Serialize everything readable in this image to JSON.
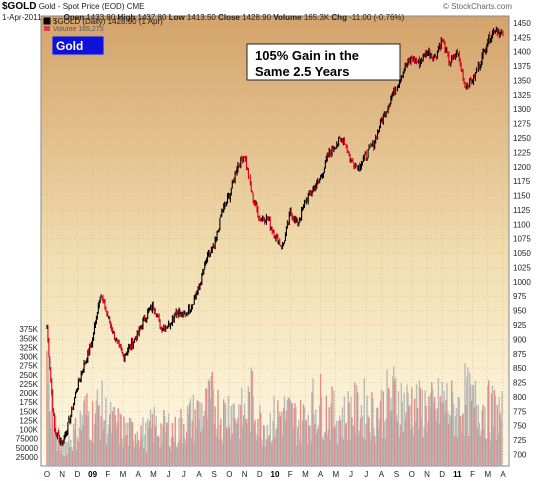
{
  "header": {
    "symbol": "$GOLD",
    "description": "Gold - Spot Price (EOD)",
    "exchange": "CME",
    "source": "© StockCharts.com",
    "date": "1-Apr-2011",
    "open_label": "Open",
    "open": "1433.80",
    "high_label": "High",
    "high": "1437.80",
    "low_label": "Low",
    "low": "1413.50",
    "close_label": "Close",
    "close": "1428.90",
    "volume_label": "Volume",
    "volume": "165.3K",
    "chg_label": "Chg",
    "chg": "-11.00 (-0.76%)"
  },
  "legend": {
    "price_line": "$GOLD (Daily) 1428.90 (1 Apr)",
    "volume_line": "Volume 165,275"
  },
  "labels": {
    "gold_box": "Gold",
    "annotation_line1": "105% Gain in the",
    "annotation_line2": "Same 2.5 Years"
  },
  "colors": {
    "background_top": "#d4a26a",
    "background_bottom": "#fffbe8",
    "up_bar": "#000000",
    "down_bar": "#d8001c",
    "volume_up": "#b0b0b0",
    "volume_down": "#e27b7b",
    "gold_box_bg": "#1010d8",
    "gold_box_text": "#ffffff"
  },
  "chart_data": {
    "type": "line",
    "title": "$GOLD Gold - Spot Price (EOD)",
    "x_tick_labels": [
      "O",
      "N",
      "D",
      "09",
      "F",
      "M",
      "A",
      "M",
      "J",
      "J",
      "A",
      "S",
      "O",
      "N",
      "D",
      "10",
      "F",
      "M",
      "A",
      "M",
      "J",
      "J",
      "A",
      "S",
      "O",
      "N",
      "D",
      "11",
      "F",
      "M",
      "A"
    ],
    "bold_x_ticks": [
      "09",
      "10",
      "11"
    ],
    "y_ticks": [
      700,
      725,
      750,
      775,
      800,
      825,
      850,
      875,
      900,
      925,
      950,
      975,
      1000,
      1025,
      1050,
      1075,
      1100,
      1125,
      1150,
      1175,
      1200,
      1225,
      1250,
      1275,
      1300,
      1325,
      1350,
      1375,
      1400,
      1425,
      1450
    ],
    "ylim": [
      680,
      1462
    ],
    "volume_ticks": [
      "25000",
      "50000",
      "75000",
      "100K",
      "125K",
      "150K",
      "175K",
      "200K",
      "225K",
      "250K",
      "275K",
      "300K",
      "325K",
      "350K",
      "375K"
    ],
    "volume_ylim": [
      0,
      400000
    ],
    "series": [
      {
        "name": "$GOLD (Daily)",
        "month_index": [
          0,
          0.5,
          1,
          1.5,
          2,
          2.5,
          3,
          3.5,
          4,
          4.5,
          5,
          5.5,
          6,
          6.5,
          7,
          7.5,
          8,
          8.5,
          9,
          9.5,
          10,
          10.5,
          11,
          11.5,
          12,
          12.5,
          13,
          13.5,
          14,
          14.5,
          15,
          15.5,
          16,
          16.5,
          17,
          17.5,
          18,
          18.5,
          19,
          19.5,
          20,
          20.5,
          21,
          21.5,
          22,
          22.5,
          23,
          23.5,
          24,
          24.5,
          25,
          25.5,
          26,
          26.5,
          27,
          27.5,
          28,
          28.5,
          29,
          29.5,
          30
        ],
        "close": [
          920,
          740,
          720,
          760,
          820,
          860,
          900,
          980,
          940,
          900,
          870,
          890,
          910,
          940,
          960,
          920,
          925,
          950,
          940,
          960,
          990,
          1040,
          1060,
          1120,
          1150,
          1200,
          1220,
          1150,
          1110,
          1110,
          1080,
          1060,
          1120,
          1100,
          1140,
          1160,
          1180,
          1220,
          1240,
          1250,
          1210,
          1200,
          1220,
          1240,
          1280,
          1310,
          1340,
          1370,
          1390,
          1380,
          1400,
          1390,
          1420,
          1380,
          1400,
          1340,
          1350,
          1380,
          1420,
          1440,
          1428.9
        ]
      }
    ],
    "volume_values": [
      340000,
      120000,
      60000,
      90000,
      120000,
      180000,
      160000,
      200000,
      150000,
      140000,
      120000,
      110000,
      130000,
      100000,
      140000,
      120000,
      130000,
      110000,
      150000,
      160000,
      180000,
      190000,
      220000,
      160000,
      200000,
      180000,
      170000,
      230000,
      150000,
      140000,
      160000,
      180000,
      170000,
      150000,
      160000,
      200000,
      210000,
      180000,
      170000,
      160000,
      190000,
      180000,
      200000,
      170000,
      190000,
      220000,
      240000,
      200000,
      210000,
      190000,
      200000,
      180000,
      220000,
      200000,
      180000,
      230000,
      200000,
      210000,
      190000,
      180000,
      165275
    ]
  }
}
